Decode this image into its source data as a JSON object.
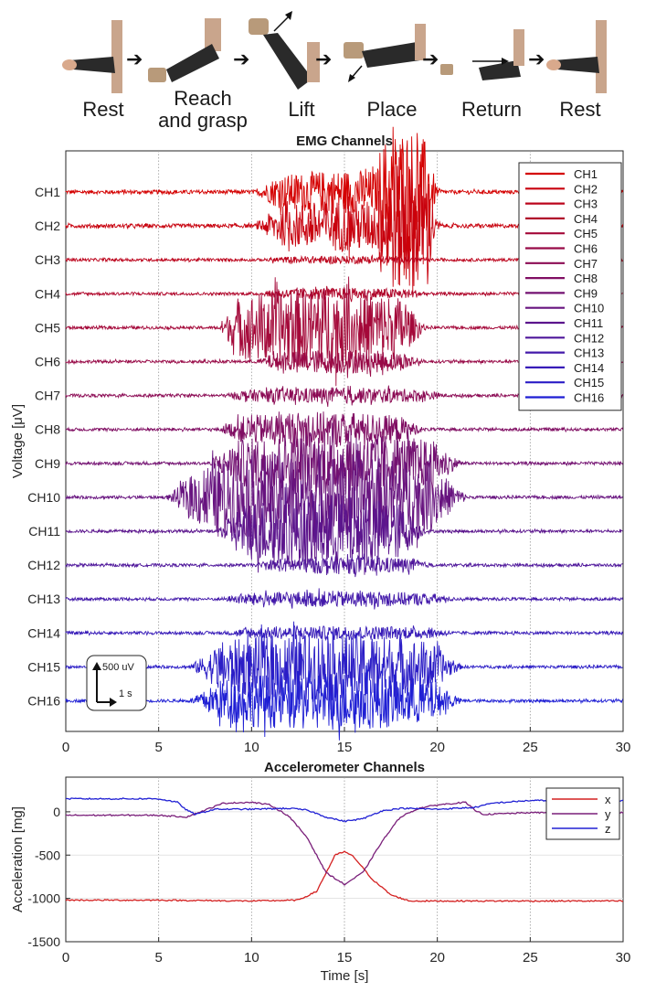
{
  "phases": [
    {
      "label": "Rest"
    },
    {
      "label": "Reach\nand grasp"
    },
    {
      "label": "Lift"
    },
    {
      "label": "Place"
    },
    {
      "label": "Return"
    },
    {
      "label": "Rest"
    }
  ],
  "colors": {
    "ch_start": "#d40000",
    "ch_end": "#1f1fd4",
    "x": "#d42020",
    "y": "#7a1f7a",
    "z": "#2020d4",
    "grid": "#9a9a9a",
    "skin": "#d9a98c",
    "sleeve": "#2a2a2a",
    "mug": "#b89a7a"
  },
  "chart_data": [
    {
      "type": "line",
      "title": "EMG Channels",
      "ylabel": "Voltage [μV]",
      "xlabel": "",
      "xlim": [
        0,
        30
      ],
      "xticks": [
        0,
        5,
        10,
        15,
        20,
        25,
        30
      ],
      "grid": "vertical",
      "legend_position": "top-right",
      "scale_bar": {
        "v_label": "500 uV",
        "h_label": "1 s"
      },
      "channels": [
        {
          "name": "CH1",
          "baseline_uv": 20,
          "bursts": [
            {
              "start": 10.0,
              "end": 20.5,
              "amp_uv": 220
            },
            {
              "start": 16.5,
              "end": 20.0,
              "amp_uv": 650
            }
          ]
        },
        {
          "name": "CH2",
          "baseline_uv": 20,
          "bursts": [
            {
              "start": 10.0,
              "end": 20.5,
              "amp_uv": 260
            },
            {
              "start": 16.5,
              "end": 20.0,
              "amp_uv": 700
            }
          ]
        },
        {
          "name": "CH3",
          "baseline_uv": 15,
          "bursts": [
            {
              "start": 10.0,
              "end": 20.0,
              "amp_uv": 40
            }
          ]
        },
        {
          "name": "CH4",
          "baseline_uv": 15,
          "bursts": [
            {
              "start": 10.0,
              "end": 20.0,
              "amp_uv": 60
            }
          ]
        },
        {
          "name": "CH5",
          "baseline_uv": 15,
          "bursts": [
            {
              "start": 8.0,
              "end": 19.5,
              "amp_uv": 420
            }
          ]
        },
        {
          "name": "CH6",
          "baseline_uv": 15,
          "bursts": [
            {
              "start": 10.0,
              "end": 19.5,
              "amp_uv": 120
            }
          ]
        },
        {
          "name": "CH7",
          "baseline_uv": 15,
          "bursts": [
            {
              "start": 8.0,
              "end": 21.0,
              "amp_uv": 80
            }
          ]
        },
        {
          "name": "CH8",
          "baseline_uv": 15,
          "bursts": [
            {
              "start": 8.0,
              "end": 19.5,
              "amp_uv": 180
            }
          ]
        },
        {
          "name": "CH9",
          "baseline_uv": 15,
          "bursts": [
            {
              "start": 7.5,
              "end": 21.5,
              "amp_uv": 320
            }
          ]
        },
        {
          "name": "CH10",
          "baseline_uv": 15,
          "bursts": [
            {
              "start": 5.3,
              "end": 21.8,
              "amp_uv": 460
            }
          ]
        },
        {
          "name": "CH11",
          "baseline_uv": 15,
          "bursts": [
            {
              "start": 8.0,
              "end": 19.5,
              "amp_uv": 380
            }
          ]
        },
        {
          "name": "CH12",
          "baseline_uv": 15,
          "bursts": [
            {
              "start": 10.0,
              "end": 20.0,
              "amp_uv": 90
            }
          ]
        },
        {
          "name": "CH13",
          "baseline_uv": 15,
          "bursts": [
            {
              "start": 7.8,
              "end": 21.5,
              "amp_uv": 80
            }
          ]
        },
        {
          "name": "CH14",
          "baseline_uv": 15,
          "bursts": [
            {
              "start": 8.0,
              "end": 21.5,
              "amp_uv": 70
            }
          ]
        },
        {
          "name": "CH15",
          "baseline_uv": 15,
          "bursts": [
            {
              "start": 6.5,
              "end": 21.5,
              "amp_uv": 350
            }
          ]
        },
        {
          "name": "CH16",
          "baseline_uv": 15,
          "bursts": [
            {
              "start": 6.5,
              "end": 21.5,
              "amp_uv": 300
            }
          ]
        }
      ]
    },
    {
      "type": "line",
      "title": "Accelerometer Channels",
      "xlabel": "Time [s]",
      "ylabel": "Acceleration [mg]",
      "xlim": [
        0,
        30
      ],
      "ylim": [
        -1500,
        400
      ],
      "xticks": [
        0,
        5,
        10,
        15,
        20,
        25,
        30
      ],
      "yticks": [
        -1500,
        -1000,
        -500,
        0
      ],
      "grid": "both",
      "legend_position": "top-right",
      "series": [
        {
          "name": "x",
          "x": [
            0,
            5,
            10,
            12.5,
            13.5,
            14.5,
            15,
            15.5,
            16.5,
            17.5,
            18.5,
            20,
            25,
            30
          ],
          "y": [
            -1020,
            -1020,
            -1030,
            -1020,
            -920,
            -500,
            -460,
            -520,
            -780,
            -960,
            -1030,
            -1030,
            -1030,
            -1030
          ]
        },
        {
          "name": "y",
          "x": [
            0,
            5,
            6.5,
            7.5,
            8.5,
            10,
            11,
            12,
            13,
            14,
            15,
            16,
            17,
            18,
            19,
            20,
            21.5,
            22,
            22.5,
            25,
            30
          ],
          "y": [
            -40,
            -40,
            -60,
            20,
            100,
            110,
            80,
            -50,
            -300,
            -700,
            -840,
            -700,
            -350,
            -60,
            40,
            80,
            110,
            20,
            -30,
            -10,
            -10
          ]
        },
        {
          "name": "z",
          "x": [
            0,
            5,
            6,
            6.5,
            7,
            8,
            10,
            12,
            13,
            14,
            15,
            16,
            17,
            18,
            20,
            22,
            23,
            25,
            30
          ],
          "y": [
            150,
            150,
            110,
            20,
            -30,
            30,
            30,
            40,
            20,
            -60,
            -110,
            -80,
            10,
            40,
            30,
            50,
            100,
            130,
            130
          ]
        }
      ]
    }
  ]
}
